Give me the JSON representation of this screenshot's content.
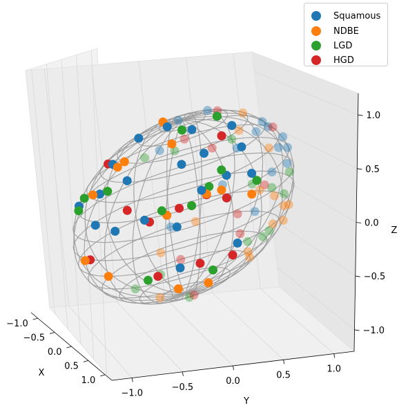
{
  "chart_data": {
    "type": "scatter",
    "subtype": "3d-scatter-on-unit-sphere-wireframe",
    "title": "",
    "xlabel": "X",
    "ylabel": "Y",
    "zlabel": "Z",
    "xlim": [
      -1.2,
      1.2
    ],
    "ylim": [
      -1.2,
      1.2
    ],
    "zlim": [
      -1.2,
      1.2
    ],
    "x_ticks": [
      "−1.0",
      "−0.5",
      "0.0",
      "0.5",
      "1.0"
    ],
    "y_ticks": [
      "−1.0",
      "−0.5",
      "0.0",
      "0.5",
      "1.0"
    ],
    "z_ticks": [
      "−1.0",
      "−0.5",
      "0.0",
      "0.5",
      "1.0"
    ],
    "grid": true,
    "legend_position": "top-right",
    "wireframe": {
      "shape": "unit sphere",
      "color": "#999999"
    },
    "series": [
      {
        "name": "Squamous",
        "color": "#1f77b4",
        "points": [
          [
            -0.95,
            0.05,
            0.2
          ],
          [
            -0.85,
            0.3,
            0.4
          ],
          [
            -0.7,
            0.5,
            0.5
          ],
          [
            -0.6,
            0.7,
            0.4
          ],
          [
            -0.4,
            0.85,
            0.35
          ],
          [
            -0.2,
            0.95,
            0.25
          ],
          [
            0.1,
            0.95,
            0.3
          ],
          [
            0.3,
            0.85,
            0.4
          ],
          [
            0.5,
            0.7,
            0.5
          ],
          [
            0.7,
            0.55,
            0.45
          ],
          [
            0.9,
            0.3,
            0.3
          ],
          [
            0.95,
            0.1,
            0.3
          ],
          [
            -0.3,
            0.1,
            0.95
          ],
          [
            -0.1,
            0.3,
            0.95
          ],
          [
            0.1,
            -0.1,
            0.99
          ],
          [
            0.2,
            0.2,
            0.96
          ],
          [
            -0.5,
            -0.3,
            0.8
          ],
          [
            0.4,
            -0.5,
            0.77
          ],
          [
            0.6,
            0.3,
            0.74
          ],
          [
            -0.7,
            -0.6,
            0.4
          ],
          [
            0.85,
            -0.45,
            0.28
          ],
          [
            0.3,
            -0.9,
            0.3
          ],
          [
            -0.2,
            -0.95,
            0.2
          ],
          [
            0.6,
            0.75,
            0.28
          ],
          [
            -0.8,
            0.55,
            0.2
          ],
          [
            0.9,
            0.4,
            0.15
          ],
          [
            0.95,
            -0.2,
            0.22
          ],
          [
            -0.95,
            -0.1,
            -0.2
          ],
          [
            -0.8,
            0.3,
            -0.5
          ],
          [
            -0.7,
            -0.5,
            -0.5
          ],
          [
            0.85,
            0.4,
            -0.35
          ],
          [
            0.5,
            0.8,
            -0.3
          ],
          [
            0.2,
            0.7,
            0.68
          ],
          [
            -0.4,
            0.6,
            0.69
          ],
          [
            0.7,
            -0.2,
            0.68
          ],
          [
            -0.3,
            -0.6,
            0.74
          ],
          [
            0.0,
            0.5,
            0.86
          ],
          [
            0.45,
            0.45,
            0.77
          ]
        ]
      },
      {
        "name": "NDBE",
        "color": "#ff7f0e",
        "points": [
          [
            -0.9,
            0.3,
            -0.3
          ],
          [
            -0.8,
            0.5,
            -0.35
          ],
          [
            -0.6,
            0.7,
            -0.4
          ],
          [
            -0.5,
            0.8,
            -0.35
          ],
          [
            0.7,
            0.6,
            0.4
          ],
          [
            0.8,
            0.5,
            0.33
          ],
          [
            0.6,
            0.7,
            0.38
          ],
          [
            0.9,
            0.3,
            0.3
          ],
          [
            0.4,
            0.9,
            0.2
          ],
          [
            -0.2,
            0.9,
            -0.4
          ],
          [
            0.1,
            0.95,
            -0.3
          ],
          [
            0.3,
            0.8,
            -0.5
          ],
          [
            -0.6,
            0.3,
            0.74
          ],
          [
            -0.9,
            0.1,
            0.42
          ],
          [
            -0.2,
            -0.3,
            0.93
          ],
          [
            0.5,
            -0.4,
            0.77
          ],
          [
            -0.5,
            -0.5,
            -0.7
          ],
          [
            0.1,
            -0.2,
            -0.97
          ],
          [
            0.5,
            0.5,
            -0.71
          ],
          [
            -0.8,
            -0.3,
            -0.52
          ],
          [
            0.9,
            -0.3,
            -0.31
          ],
          [
            0.2,
            -0.9,
            -0.38
          ],
          [
            -0.4,
            -0.8,
            0.45
          ],
          [
            0.6,
            -0.6,
            0.53
          ],
          [
            -0.9,
            0.4,
            0.17
          ],
          [
            0.7,
            0.3,
            -0.65
          ],
          [
            -0.3,
            0.5,
            -0.81
          ],
          [
            0.4,
            0.1,
            0.91
          ]
        ]
      },
      {
        "name": "LGD",
        "color": "#2ca02c",
        "points": [
          [
            -0.95,
            0.2,
            -0.24
          ],
          [
            -0.85,
            0.45,
            -0.27
          ],
          [
            -0.7,
            0.65,
            -0.3
          ],
          [
            0.5,
            0.65,
            0.57
          ],
          [
            0.65,
            0.6,
            0.46
          ],
          [
            0.8,
            0.5,
            0.33
          ],
          [
            0.9,
            0.25,
            0.36
          ],
          [
            0.3,
            0.9,
            0.31
          ],
          [
            -0.2,
            0.97,
            0.15
          ],
          [
            0.4,
            0.85,
            -0.34
          ],
          [
            0.2,
            0.9,
            -0.39
          ],
          [
            0.6,
            0.6,
            -0.53
          ],
          [
            -0.8,
            -0.5,
            0.33
          ],
          [
            -0.6,
            -0.7,
            0.38
          ],
          [
            0.1,
            -0.95,
            0.3
          ],
          [
            0.5,
            -0.8,
            0.33
          ],
          [
            -0.3,
            -0.4,
            -0.87
          ],
          [
            0.3,
            0.2,
            -0.93
          ],
          [
            -0.1,
            0.3,
            0.95
          ],
          [
            0.2,
            0.1,
            0.97
          ],
          [
            0.7,
            -0.4,
            0.59
          ],
          [
            -0.5,
            0.6,
            -0.62
          ],
          [
            0.9,
            0.1,
            -0.42
          ],
          [
            -0.95,
            0.0,
            0.31
          ],
          [
            0.0,
            -0.5,
            -0.87
          ]
        ]
      },
      {
        "name": "HGD",
        "color": "#d62728",
        "points": [
          [
            -0.9,
            0.35,
            -0.25
          ],
          [
            -0.85,
            0.1,
            -0.52
          ],
          [
            0.7,
            0.6,
            0.39
          ],
          [
            0.85,
            0.4,
            0.34
          ],
          [
            0.95,
            0.15,
            0.27
          ],
          [
            0.6,
            0.75,
            0.28
          ],
          [
            0.75,
            0.55,
            -0.37
          ],
          [
            0.9,
            0.2,
            -0.39
          ],
          [
            0.5,
            0.75,
            -0.43
          ],
          [
            -0.6,
            0.6,
            0.53
          ],
          [
            -0.8,
            -0.4,
            0.45
          ],
          [
            0.3,
            -0.6,
            0.74
          ],
          [
            -0.3,
            0.2,
            0.93
          ],
          [
            0.1,
            -0.9,
            -0.42
          ],
          [
            -0.5,
            -0.3,
            -0.81
          ],
          [
            0.4,
            0.3,
            -0.87
          ],
          [
            0.9,
            -0.1,
            0.42
          ],
          [
            -0.95,
            -0.2,
            0.24
          ],
          [
            0.2,
            0.5,
            0.84
          ],
          [
            -0.7,
            0.2,
            -0.69
          ]
        ]
      }
    ]
  },
  "legend": {
    "items": [
      {
        "label": "Squamous",
        "color": "#1f77b4"
      },
      {
        "label": "NDBE",
        "color": "#ff7f0e"
      },
      {
        "label": "LGD",
        "color": "#2ca02c"
      },
      {
        "label": "HGD",
        "color": "#d62728"
      }
    ]
  }
}
